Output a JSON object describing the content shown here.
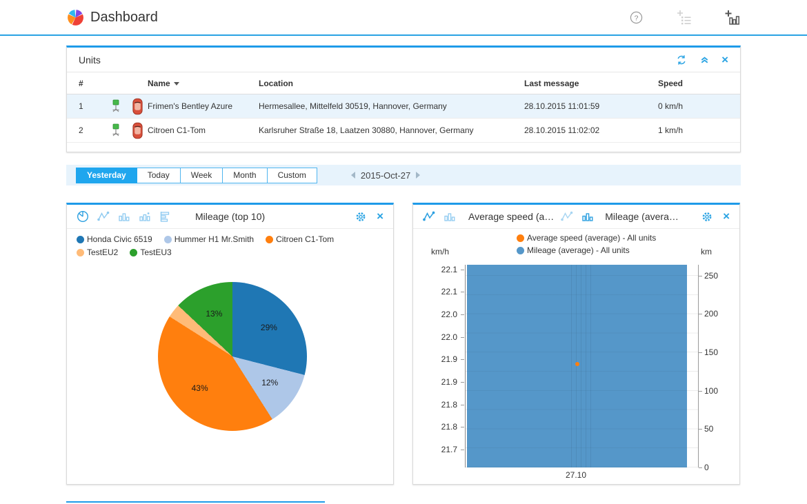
{
  "header": {
    "title": "Dashboard"
  },
  "units_panel": {
    "title": "Units",
    "columns": [
      "#",
      "Name",
      "Location",
      "Last message",
      "Speed"
    ],
    "rows": [
      {
        "num": "1",
        "name": "Frimen's Bentley Azure",
        "location": "Hermesallee, Mittelfeld 30519, Hannover, Germany",
        "last_message": "28.10.2015 11:01:59",
        "speed": "0 km/h"
      },
      {
        "num": "2",
        "name": "Citroen C1-Tom",
        "location": "Karlsruher Straße 18, Laatzen 30880, Hannover, Germany",
        "last_message": "28.10.2015 11:02:02",
        "speed": "1 km/h"
      }
    ]
  },
  "filter_bar": {
    "buttons": [
      "Yesterday",
      "Today",
      "Week",
      "Month",
      "Custom"
    ],
    "active": "Yesterday",
    "date": "2015-Oct-27"
  },
  "colors": {
    "accent": "#29a3e3",
    "panel_top_border": "#1e9be9",
    "active_button": "#1fa6ee",
    "filter_bar_bg": "#e7f3fc",
    "row_highlight": "#e9f4fc"
  },
  "chart_data": [
    {
      "type": "pie",
      "title": "Mileage (top 10)",
      "labels": [
        "Honda Civic 6519",
        "Hummer H1 Mr.Smith",
        "Citroen C1-Tom",
        "TestEU2",
        "TestEU3"
      ],
      "values": [
        29,
        12,
        43,
        3,
        13
      ],
      "value_labels": [
        "29%",
        "12%",
        "43%",
        "",
        "13%"
      ],
      "colors": [
        "#1f77b4",
        "#aec7e8",
        "#ff7f0e",
        "#ffbb78",
        "#2ca02c"
      ],
      "legend_position": "top-left"
    },
    {
      "type": "bar",
      "titles": [
        "Average speed (a…",
        "Mileage (avera…"
      ],
      "x": [
        "27.10"
      ],
      "left_axis": {
        "unit": "km/h",
        "min": 21.66,
        "max": 22.11,
        "ticks": [
          {
            "label": "22.1",
            "value": 22.1
          },
          {
            "label": "22.1",
            "value": 22.05
          },
          {
            "label": "22.0",
            "value": 22.0
          },
          {
            "label": "22.0",
            "value": 21.95
          },
          {
            "label": "21.9",
            "value": 21.9
          },
          {
            "label": "21.9",
            "value": 21.85
          },
          {
            "label": "21.8",
            "value": 21.8
          },
          {
            "label": "21.8",
            "value": 21.75
          },
          {
            "label": "21.7",
            "value": 21.7
          }
        ]
      },
      "right_axis": {
        "unit": "km",
        "min": 0,
        "max": 264,
        "ticks": [
          {
            "label": "250",
            "value": 250
          },
          {
            "label": "200",
            "value": 200
          },
          {
            "label": "150",
            "value": 150
          },
          {
            "label": "100",
            "value": 100
          },
          {
            "label": "50",
            "value": 50
          },
          {
            "label": "0",
            "value": 0
          }
        ]
      },
      "series": [
        {
          "name": "Average speed (average) - All units",
          "type": "point",
          "axis": "left",
          "color": "#ff7f0e",
          "values": [
            21.89
          ]
        },
        {
          "name": "Mileage (average) - All units",
          "type": "bar",
          "axis": "right",
          "color": "#5597c9",
          "values": [
            264
          ]
        }
      ],
      "legend_position": "top-center",
      "grid": true
    }
  ]
}
